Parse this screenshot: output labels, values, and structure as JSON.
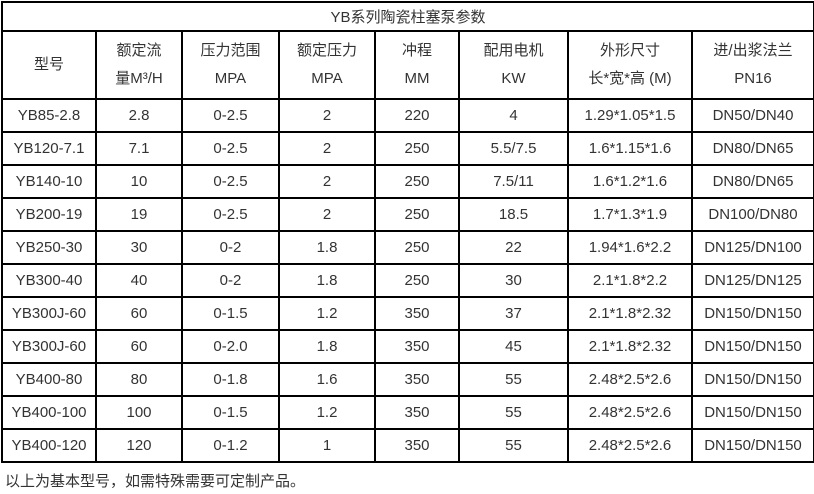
{
  "title": "YB系列陶瓷柱塞泵参数",
  "columns": [
    {
      "line1": "型号",
      "line2": ""
    },
    {
      "line1": "额定流",
      "line2": "量M³/H"
    },
    {
      "line1": "压力范围",
      "line2": "MPA"
    },
    {
      "line1": "额定压力",
      "line2": "MPA"
    },
    {
      "line1": "冲程",
      "line2": "MM"
    },
    {
      "line1": "配用电机",
      "line2": "KW"
    },
    {
      "line1": "外形尺寸",
      "line2": "长*宽*高 (M)"
    },
    {
      "line1": "进/出浆法兰",
      "line2": "PN16"
    }
  ],
  "rows": [
    [
      "YB85-2.8",
      "2.8",
      "0-2.5",
      "2",
      "220",
      "4",
      "1.29*1.05*1.5",
      "DN50/DN40"
    ],
    [
      "YB120-7.1",
      "7.1",
      "0-2.5",
      "2",
      "250",
      "5.5/7.5",
      "1.6*1.15*1.6",
      "DN80/DN65"
    ],
    [
      "YB140-10",
      "10",
      "0-2.5",
      "2",
      "250",
      "7.5/11",
      "1.6*1.2*1.6",
      "DN80/DN65"
    ],
    [
      "YB200-19",
      "19",
      "0-2.5",
      "2",
      "250",
      "18.5",
      "1.7*1.3*1.9",
      "DN100/DN80"
    ],
    [
      "YB250-30",
      "30",
      "0-2",
      "1.8",
      "250",
      "22",
      "1.94*1.6*2.2",
      "DN125/DN100"
    ],
    [
      "YB300-40",
      "40",
      "0-2",
      "1.8",
      "250",
      "30",
      "2.1*1.8*2.2",
      "DN125/DN125"
    ],
    [
      "YB300J-60",
      "60",
      "0-1.5",
      "1.2",
      "350",
      "37",
      "2.1*1.8*2.32",
      "DN150/DN150"
    ],
    [
      "YB300J-60",
      "60",
      "0-2.0",
      "1.8",
      "350",
      "45",
      "2.1*1.8*2.32",
      "DN150/DN150"
    ],
    [
      "YB400-80",
      "80",
      "0-1.8",
      "1.6",
      "350",
      "55",
      "2.48*2.5*2.6",
      "DN150/DN150"
    ],
    [
      "YB400-100",
      "100",
      "0-1.5",
      "1.2",
      "350",
      "55",
      "2.48*2.5*2.6",
      "DN150/DN150"
    ],
    [
      "YB400-120",
      "120",
      "0-1.2",
      "1",
      "350",
      "55",
      "2.48*2.5*2.6",
      "DN150/DN150"
    ]
  ],
  "footer": {
    "note": "以上为基本型号，如需特殊需要可定制产品。"
  },
  "colors": {
    "border": "#000000",
    "text": "#333333",
    "background": "#ffffff"
  }
}
